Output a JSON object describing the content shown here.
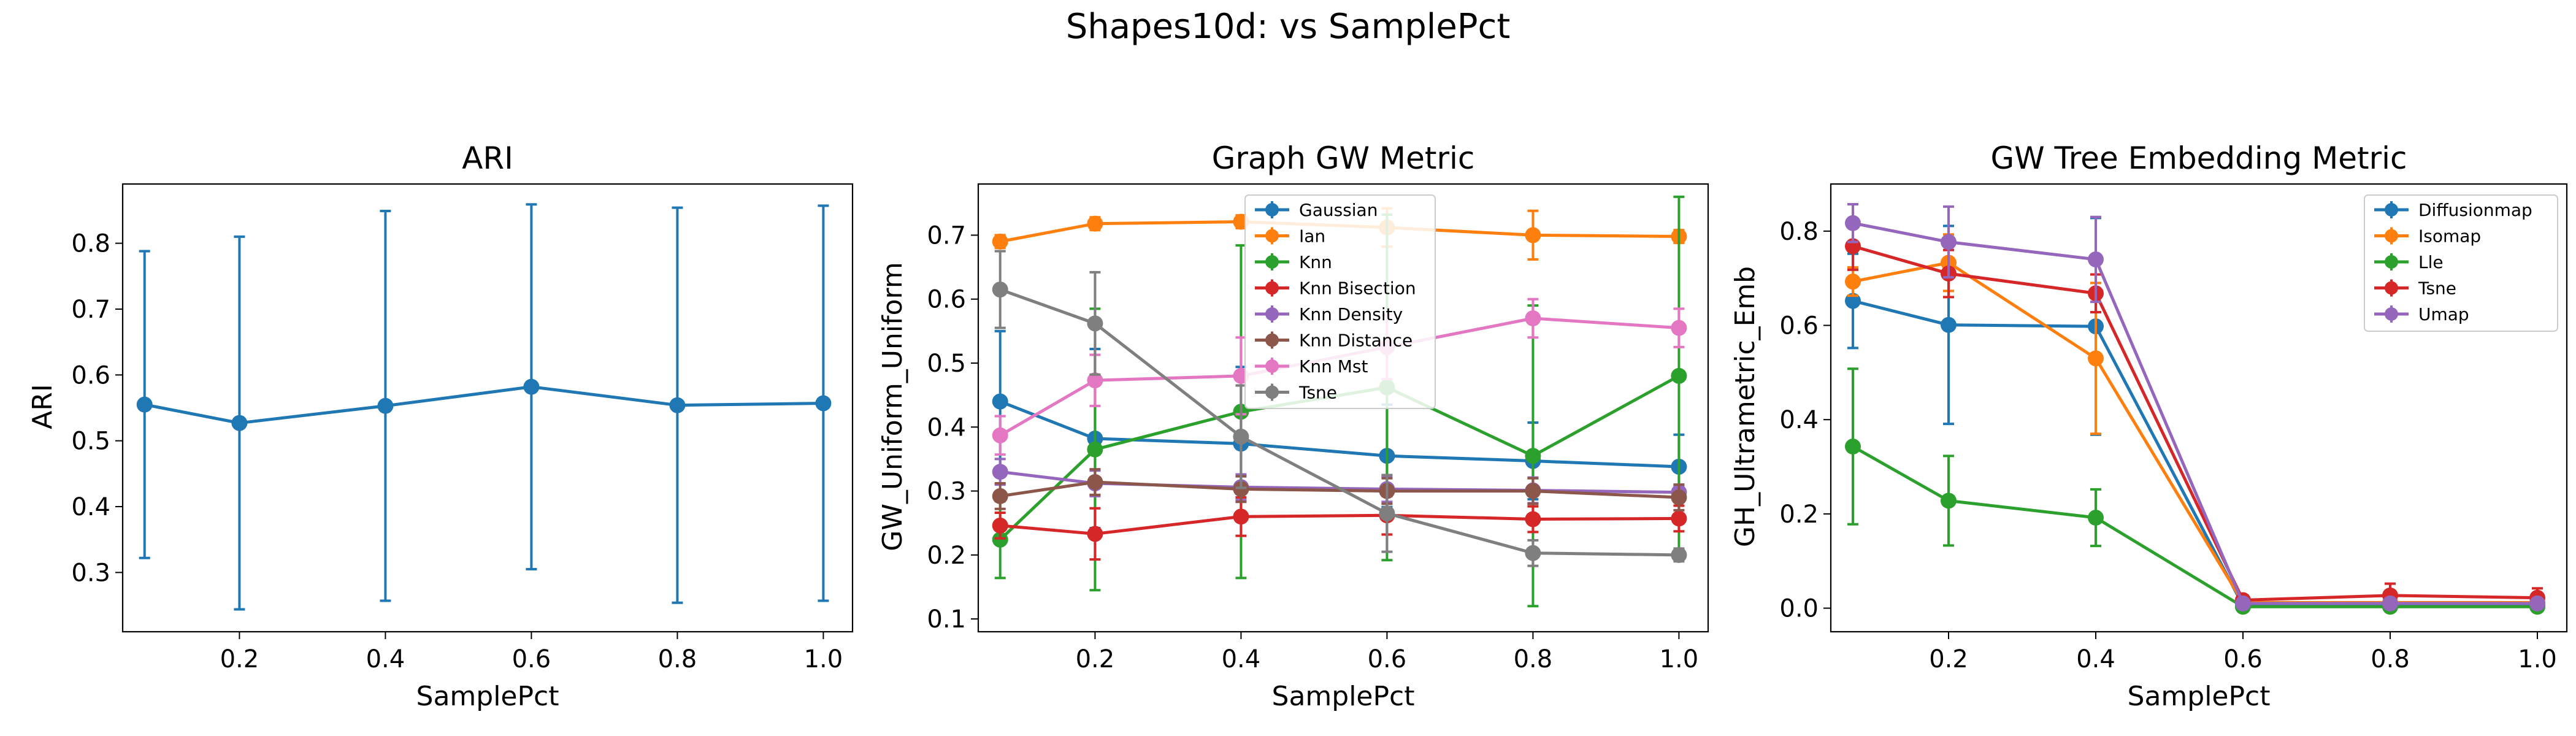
{
  "figure": {
    "title": "Shapes10d: vs SamplePct"
  },
  "colors": {
    "blue": "#1f77b4",
    "orange": "#ff7f0e",
    "green": "#2ca02c",
    "red": "#d62728",
    "purple": "#9467bd",
    "brown": "#8c564b",
    "pink": "#e377c2",
    "gray": "#7f7f7f"
  },
  "chart_data": [
    {
      "type": "line",
      "title": "ARI",
      "xlabel": "SamplePct",
      "ylabel": "ARI",
      "xlim": [
        0.04,
        1.04
      ],
      "ylim": [
        0.21,
        0.89
      ],
      "xticks": [
        0.2,
        0.4,
        0.6,
        0.8,
        1.0
      ],
      "xtick_labels": [
        "0.2",
        "0.4",
        "0.6",
        "0.8",
        "1.0"
      ],
      "yticks": [
        0.3,
        0.4,
        0.5,
        0.6,
        0.7,
        0.8
      ],
      "ytick_labels": [
        "0.3",
        "0.4",
        "0.5",
        "0.6",
        "0.7",
        "0.8"
      ],
      "x": [
        0.07,
        0.2,
        0.4,
        0.6,
        0.8,
        1.0
      ],
      "legend": null,
      "series": [
        {
          "color": "blue",
          "values": [
            0.555,
            0.527,
            0.553,
            0.582,
            0.554,
            0.557
          ],
          "err": [
            0.233,
            0.283,
            0.296,
            0.277,
            0.3,
            0.3
          ]
        }
      ]
    },
    {
      "type": "line",
      "title": "Graph GW Metric",
      "xlabel": "SamplePct",
      "ylabel": "GW_Uniform_Uniform",
      "xlim": [
        0.04,
        1.04
      ],
      "ylim": [
        0.08,
        0.78
      ],
      "xticks": [
        0.2,
        0.4,
        0.6,
        0.8,
        1.0
      ],
      "xtick_labels": [
        "0.2",
        "0.4",
        "0.6",
        "0.8",
        "1.0"
      ],
      "yticks": [
        0.1,
        0.2,
        0.3,
        0.4,
        0.5,
        0.6,
        0.7
      ],
      "ytick_labels": [
        "0.1",
        "0.2",
        "0.3",
        "0.4",
        "0.5",
        "0.6",
        "0.7"
      ],
      "x": [
        0.07,
        0.2,
        0.4,
        0.6,
        0.8,
        1.0
      ],
      "legend": "upper-center",
      "series": [
        {
          "name": "Gaussian",
          "color": "blue",
          "values": [
            0.44,
            0.382,
            0.374,
            0.355,
            0.347,
            0.338
          ],
          "err": [
            0.11,
            0.14,
            0.12,
            0.08,
            0.06,
            0.05
          ]
        },
        {
          "name": "Ian",
          "color": "orange",
          "values": [
            0.69,
            0.718,
            0.721,
            0.712,
            0.7,
            0.698
          ],
          "err": [
            0.01,
            0.01,
            0.01,
            0.03,
            0.038,
            0.01
          ]
        },
        {
          "name": "Knn",
          "color": "green",
          "values": [
            0.224,
            0.365,
            0.424,
            0.462,
            0.355,
            0.48
          ],
          "err": [
            0.06,
            0.22,
            0.26,
            0.27,
            0.235,
            0.28
          ]
        },
        {
          "name": "Knn Bisection",
          "color": "red",
          "values": [
            0.246,
            0.233,
            0.26,
            0.262,
            0.256,
            0.257
          ],
          "err": [
            0.02,
            0.04,
            0.03,
            0.03,
            0.02,
            0.02
          ]
        },
        {
          "name": "Knn Density",
          "color": "purple",
          "values": [
            0.33,
            0.312,
            0.306,
            0.303,
            0.301,
            0.298
          ],
          "err": [
            0.02,
            0.02,
            0.02,
            0.02,
            0.02,
            0.01
          ]
        },
        {
          "name": "Knn Distance",
          "color": "brown",
          "values": [
            0.292,
            0.314,
            0.303,
            0.3,
            0.3,
            0.29
          ],
          "err": [
            0.02,
            0.02,
            0.02,
            0.02,
            0.02,
            0.02
          ]
        },
        {
          "name": "Knn Mst",
          "color": "pink",
          "values": [
            0.387,
            0.473,
            0.48,
            0.525,
            0.57,
            0.555
          ],
          "err": [
            0.03,
            0.04,
            0.06,
            0.05,
            0.03,
            0.03
          ]
        },
        {
          "name": "Tsne",
          "color": "gray",
          "values": [
            0.615,
            0.562,
            0.385,
            0.265,
            0.203,
            0.2
          ],
          "err": [
            0.06,
            0.08,
            0.08,
            0.06,
            0.02,
            0.01
          ]
        }
      ]
    },
    {
      "type": "line",
      "title": "GW Tree Embedding Metric",
      "xlabel": "SamplePct",
      "ylabel": "GH_Ultrametric_Emb",
      "xlim": [
        0.04,
        1.04
      ],
      "ylim": [
        -0.05,
        0.9
      ],
      "xticks": [
        0.2,
        0.4,
        0.6,
        0.8,
        1.0
      ],
      "xtick_labels": [
        "0.2",
        "0.4",
        "0.6",
        "0.8",
        "1.0"
      ],
      "yticks": [
        0.0,
        0.2,
        0.4,
        0.6,
        0.8
      ],
      "ytick_labels": [
        "0.0",
        "0.2",
        "0.4",
        "0.6",
        "0.8"
      ],
      "x": [
        0.07,
        0.2,
        0.4,
        0.6,
        0.8,
        1.0
      ],
      "legend": "top-right",
      "series": [
        {
          "name": "Diffusionmap",
          "color": "blue",
          "values": [
            0.652,
            0.601,
            0.598,
            0.006,
            0.006,
            0.005
          ],
          "err": [
            0.1,
            0.21,
            0.23,
            0.005,
            0.005,
            0.004
          ]
        },
        {
          "name": "Isomap",
          "color": "orange",
          "values": [
            0.693,
            0.733,
            0.53,
            0.012,
            0.012,
            0.012
          ],
          "err": [
            0.03,
            0.06,
            0.16,
            0.01,
            0.01,
            0.01
          ]
        },
        {
          "name": "Lle",
          "color": "green",
          "values": [
            0.343,
            0.228,
            0.192,
            0.003,
            0.003,
            0.003
          ],
          "err": [
            0.165,
            0.095,
            0.06,
            0.003,
            0.003,
            0.003
          ]
        },
        {
          "name": "Tsne",
          "color": "red",
          "values": [
            0.768,
            0.71,
            0.668,
            0.017,
            0.027,
            0.022
          ],
          "err": [
            0.05,
            0.05,
            0.04,
            0.01,
            0.025,
            0.02
          ]
        },
        {
          "name": "Umap",
          "color": "purple",
          "values": [
            0.817,
            0.777,
            0.74,
            0.01,
            0.01,
            0.01
          ],
          "err": [
            0.04,
            0.075,
            0.09,
            0.005,
            0.005,
            0.005
          ]
        }
      ]
    }
  ]
}
